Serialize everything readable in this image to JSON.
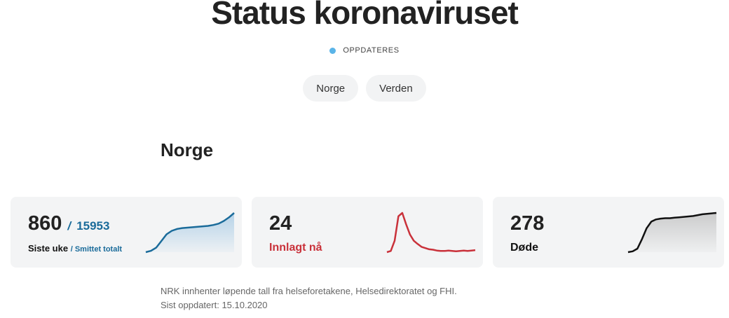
{
  "page": {
    "title": "Status koronaviruset",
    "status_text": "OPPDATERES",
    "status_color": "#5ab4e8"
  },
  "tabs": [
    {
      "label": "Norge"
    },
    {
      "label": "Verden"
    }
  ],
  "section": {
    "title": "Norge"
  },
  "cards": {
    "cases": {
      "value": "860",
      "separator": "/",
      "total": "15953",
      "label": "Siste uke",
      "sub_label": "/ Smittet totalt",
      "color": "#1a6b9a",
      "trend": [
        0,
        3,
        10,
        25,
        40,
        48,
        52,
        54,
        55,
        56,
        57,
        58,
        59,
        61,
        64,
        70,
        78,
        88
      ]
    },
    "hospitalized": {
      "value": "24",
      "label": "Innlagt nå",
      "color": "#c9313a",
      "trend": [
        2,
        5,
        30,
        90,
        98,
        70,
        45,
        30,
        22,
        15,
        12,
        9,
        8,
        6,
        5,
        5,
        6,
        5,
        4,
        5,
        6,
        5,
        6,
        7
      ]
    },
    "deaths": {
      "value": "278",
      "label": "Døde",
      "color": "#111111",
      "trend": [
        0,
        2,
        8,
        30,
        55,
        70,
        75,
        77,
        78,
        78,
        79,
        80,
        81,
        82,
        83,
        85,
        87,
        88,
        89,
        90
      ]
    }
  },
  "footnote": {
    "line1": "NRK innhenter løpende tall fra helseforetakene, Helsedirektoratet og FHI.",
    "line2": "Sist oppdatert: 15.10.2020"
  }
}
